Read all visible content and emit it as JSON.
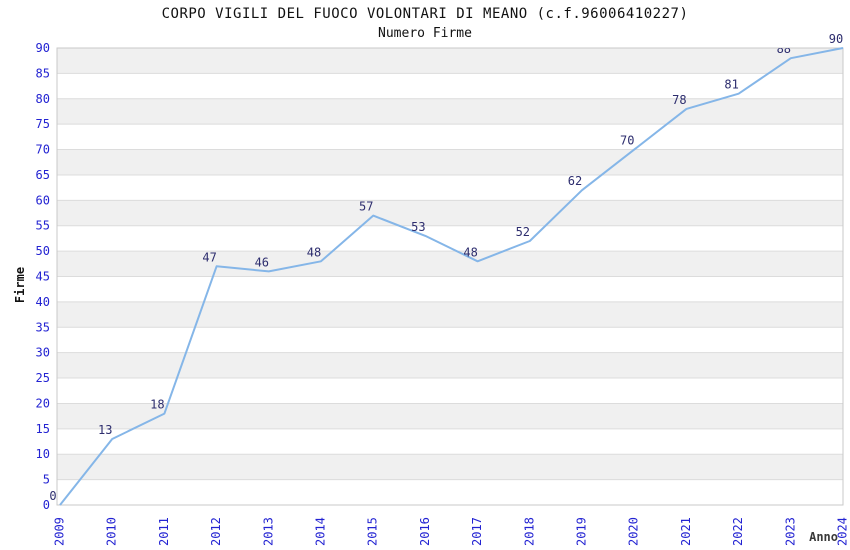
{
  "chart_data": {
    "type": "line",
    "title": "CORPO VIGILI DEL FUOCO VOLONTARI DI MEANO (c.f.96006410227)",
    "subtitle": "Numero Firme",
    "xlabel": "Anno",
    "ylabel": "Firme",
    "categories": [
      "2009",
      "2010",
      "2011",
      "2012",
      "2013",
      "2014",
      "2015",
      "2016",
      "2017",
      "2018",
      "2019",
      "2020",
      "2021",
      "2022",
      "2023",
      "2024"
    ],
    "values": [
      0,
      13,
      18,
      47,
      46,
      48,
      57,
      53,
      48,
      52,
      62,
      70,
      78,
      81,
      88,
      90
    ],
    "ylim": [
      0,
      90
    ],
    "ytick_step": 5,
    "grid": true,
    "legend": "none",
    "banded_background": true,
    "data_labels_shown": true
  },
  "style": {
    "line_color": "#85b6e8",
    "tick_label_color": "#2323d2",
    "data_label_color": "#2d2d6e",
    "band_color": "#f0f0f0",
    "grid_color": "#dcdcdc",
    "border_color": "#c9c9c9",
    "title_color": "#111111",
    "subtitle_color": "#111111",
    "y_axis_title_color": "#111111",
    "x_axis_title_color": "#3a3a3a",
    "background_color": "#ffffff"
  }
}
